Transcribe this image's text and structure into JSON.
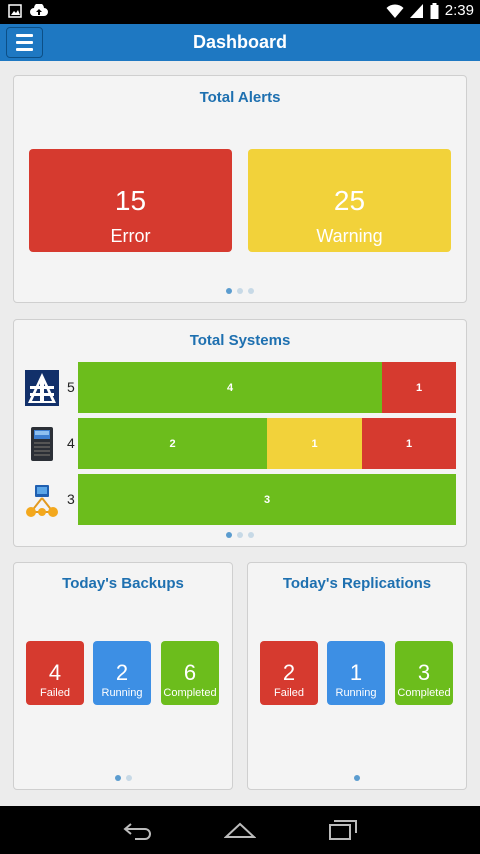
{
  "status_bar": {
    "time": "2:39"
  },
  "app_bar": {
    "title": "Dashboard"
  },
  "alerts": {
    "title": "Total Alerts",
    "error": {
      "value": "15",
      "label": "Error"
    },
    "warning": {
      "value": "25",
      "label": "Warning"
    }
  },
  "systems": {
    "title": "Total Systems",
    "rows": [
      {
        "icon": "appassure-logo-icon",
        "count": "5",
        "segments": [
          {
            "value": "4",
            "status": "ok"
          },
          {
            "value": "1",
            "status": "error"
          }
        ]
      },
      {
        "icon": "server-icon",
        "count": "4",
        "segments": [
          {
            "value": "2",
            "status": "ok"
          },
          {
            "value": "1",
            "status": "warning"
          },
          {
            "value": "1",
            "status": "error"
          }
        ]
      },
      {
        "icon": "network-nodes-icon",
        "count": "3",
        "segments": [
          {
            "value": "3",
            "status": "ok"
          }
        ]
      }
    ]
  },
  "backups": {
    "title": "Today's Backups",
    "failed": {
      "value": "4",
      "label": "Failed"
    },
    "running": {
      "value": "2",
      "label": "Running"
    },
    "completed": {
      "value": "6",
      "label": "Completed"
    }
  },
  "replications": {
    "title": "Today's Replications",
    "failed": {
      "value": "2",
      "label": "Failed"
    },
    "running": {
      "value": "1",
      "label": "Running"
    },
    "completed": {
      "value": "3",
      "label": "Completed"
    }
  },
  "colors": {
    "primary": "#1e78c2",
    "error": "#d63a2f",
    "warning": "#f2d23a",
    "ok": "#6cbd1c",
    "running": "#3d8fe4"
  }
}
